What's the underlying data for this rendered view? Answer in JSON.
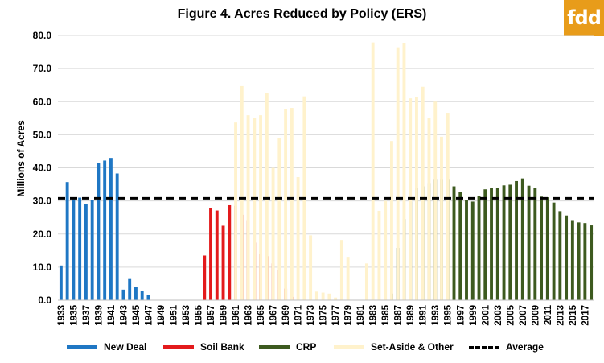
{
  "chart_data": {
    "type": "bar",
    "title": "Figure 4. Acres Reduced by Policy (ERS)",
    "ylabel": "Millions of Acres",
    "xlabel": "",
    "ylim": [
      0,
      80
    ],
    "yticks": [
      "0.0",
      "10.0",
      "20.0",
      "30.0",
      "40.0",
      "50.0",
      "60.0",
      "70.0",
      "80.0"
    ],
    "xticks": [
      "1933",
      "1935",
      "1937",
      "1939",
      "1941",
      "1943",
      "1945",
      "1947",
      "1949",
      "1951",
      "1953",
      "1955",
      "1957",
      "1959",
      "1961",
      "1963",
      "1965",
      "1967",
      "1969",
      "1971",
      "1973",
      "1975",
      "1977",
      "1979",
      "1981",
      "1983",
      "1985",
      "1987",
      "1989",
      "1991",
      "1993",
      "1995",
      "1997",
      "1999",
      "2001",
      "2003",
      "2005",
      "2007",
      "2009",
      "2011",
      "2013",
      "2015",
      "2017"
    ],
    "grid": true,
    "legend_position": "bottom",
    "years": [
      1933,
      1934,
      1935,
      1936,
      1937,
      1938,
      1939,
      1940,
      1941,
      1942,
      1943,
      1944,
      1945,
      1946,
      1947,
      1948,
      1949,
      1950,
      1951,
      1952,
      1953,
      1954,
      1955,
      1956,
      1957,
      1958,
      1959,
      1960,
      1961,
      1962,
      1963,
      1964,
      1965,
      1966,
      1967,
      1968,
      1969,
      1970,
      1971,
      1972,
      1973,
      1974,
      1975,
      1976,
      1977,
      1978,
      1979,
      1980,
      1981,
      1982,
      1983,
      1984,
      1985,
      1986,
      1987,
      1988,
      1989,
      1990,
      1991,
      1992,
      1993,
      1994,
      1995,
      1996,
      1997,
      1998,
      1999,
      2000,
      2001,
      2002,
      2003,
      2004,
      2005,
      2006,
      2007,
      2008,
      2009,
      2010,
      2011,
      2012,
      2013,
      2014,
      2015,
      2016,
      2017,
      2018
    ],
    "series": [
      {
        "name": "New Deal",
        "color": "#1f77c4",
        "values": [
          10.5,
          35.7,
          30.5,
          31,
          29.1,
          30.2,
          41.5,
          42.2,
          43,
          38.3,
          3.2,
          6.4,
          4,
          2.9,
          1.6,
          0,
          0,
          0,
          0,
          0,
          0,
          0,
          0,
          0,
          0,
          0,
          0,
          0,
          0,
          0,
          0,
          0,
          0,
          0,
          0,
          0,
          0,
          0,
          0,
          0,
          0,
          0,
          0,
          0,
          0,
          0,
          0,
          0,
          0,
          0,
          0,
          0,
          0,
          0,
          0,
          0,
          0,
          0,
          0,
          0,
          0,
          0,
          0,
          0,
          0,
          0,
          0,
          0,
          0,
          0,
          0,
          0,
          0,
          0,
          0,
          0,
          0,
          0,
          0,
          0,
          0,
          0,
          0,
          0,
          0,
          0
        ]
      },
      {
        "name": "Soil Bank",
        "color": "#e31a1c",
        "values": [
          0,
          0,
          0,
          0,
          0,
          0,
          0,
          0,
          0,
          0,
          0,
          0,
          0,
          0,
          0,
          0,
          0,
          0,
          0,
          0,
          0,
          0,
          0,
          13.5,
          27.9,
          27.1,
          22.5,
          28.7,
          28.5,
          25.8,
          24.2,
          17.4,
          14,
          13.3,
          11.1,
          9.1,
          3.5,
          1,
          0,
          0,
          0,
          0,
          0,
          0,
          0,
          0,
          0,
          0,
          0,
          0,
          0,
          0,
          0,
          0,
          0,
          0,
          0,
          0,
          0,
          0,
          0,
          0,
          0,
          0,
          0,
          0,
          0,
          0,
          0,
          0,
          0,
          0,
          0,
          0,
          0,
          0,
          0,
          0,
          0,
          0,
          0,
          0,
          0,
          0,
          0,
          0
        ]
      },
      {
        "name": "CRP",
        "color": "#3d5a1f",
        "values": [
          0,
          0,
          0,
          0,
          0,
          0,
          0,
          0,
          0,
          0,
          0,
          0,
          0,
          0,
          0,
          0,
          0,
          0,
          0,
          0,
          0,
          0,
          0,
          0,
          0,
          0,
          0,
          0,
          0,
          0,
          0,
          0,
          0,
          0,
          0,
          0,
          0,
          0,
          0,
          0,
          0,
          0,
          0,
          0,
          0,
          0,
          0,
          0,
          0,
          0,
          0,
          0,
          0,
          2,
          15.8,
          24.5,
          29.8,
          33.9,
          34.4,
          35.4,
          36.4,
          36.4,
          36.4,
          34.4,
          32.7,
          30.3,
          29.8,
          31.4,
          33.5,
          33.9,
          33.8,
          34.7,
          34.9,
          36,
          36.8,
          34.6,
          33.8,
          31.3,
          31.1,
          29.5,
          26.9,
          25.6,
          24.2,
          23.5,
          23.3,
          22.6
        ]
      },
      {
        "name": "Set-Aside & Other",
        "color": "#fff2cc",
        "values": [
          0,
          0,
          0,
          0,
          0,
          0,
          0,
          0,
          0,
          0,
          0,
          0,
          0,
          0,
          0,
          0,
          0,
          0,
          0,
          0,
          0,
          0,
          0,
          0,
          0,
          0,
          0,
          0,
          53.7,
          64.7,
          55.9,
          55,
          55.9,
          62.6,
          40,
          48.9,
          57.7,
          58.1,
          37.2,
          61.6,
          19.6,
          2.6,
          2.3,
          2,
          0.8,
          18.2,
          13.1,
          0,
          0,
          11.1,
          77.9,
          27,
          30,
          48.1,
          76.2,
          77.6,
          61,
          61.5,
          64.5,
          55,
          60,
          49.4,
          56.4,
          0,
          0,
          0,
          0,
          0,
          0,
          0,
          0,
          0,
          0,
          0,
          0,
          0,
          0,
          0,
          0,
          0,
          0,
          0,
          0,
          0,
          0,
          0
        ]
      }
    ],
    "average": {
      "name": "Average",
      "value": 30.8,
      "color": "#000000"
    }
  }
}
